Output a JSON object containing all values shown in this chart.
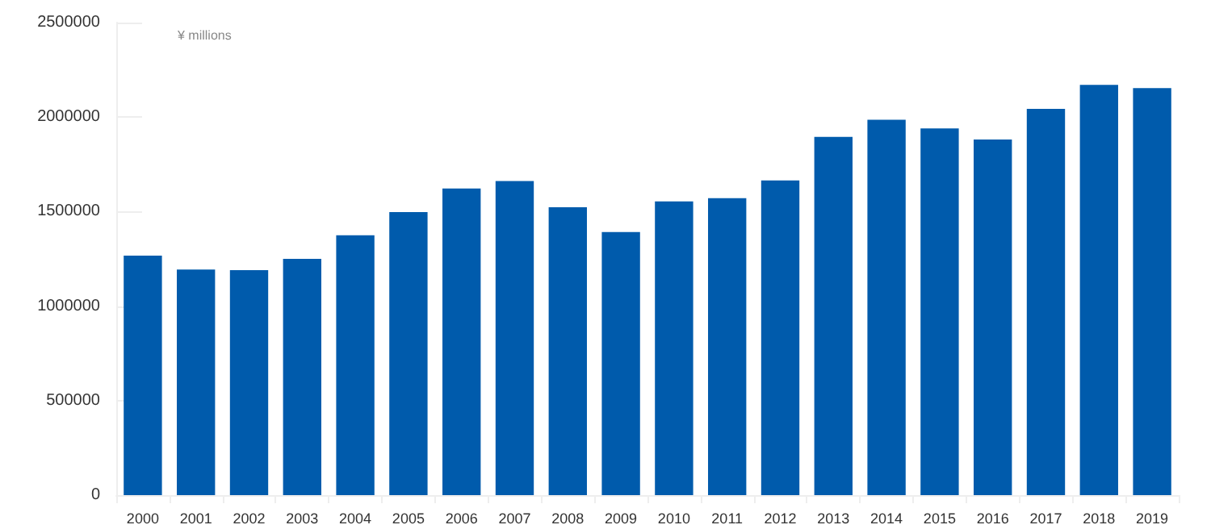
{
  "chart_data": {
    "type": "bar",
    "ylabel": "¥ millions",
    "categories": [
      "2000",
      "2001",
      "2002",
      "2003",
      "2004",
      "2005",
      "2006",
      "2007",
      "2008",
      "2009",
      "2010",
      "2011",
      "2012",
      "2013",
      "2014",
      "2015",
      "2016",
      "2017",
      "2018",
      "2019"
    ],
    "values": [
      1267000,
      1193000,
      1190000,
      1250000,
      1375000,
      1497000,
      1622000,
      1662000,
      1523000,
      1392000,
      1554000,
      1571000,
      1665000,
      1895000,
      1986000,
      1940000,
      1881000,
      2043000,
      2170000,
      2153000
    ],
    "color": "#005bac",
    "ylim": [
      0,
      2500000
    ],
    "yticks": [
      0,
      500000,
      1000000,
      1500000,
      2000000,
      2500000
    ],
    "grid": false
  }
}
